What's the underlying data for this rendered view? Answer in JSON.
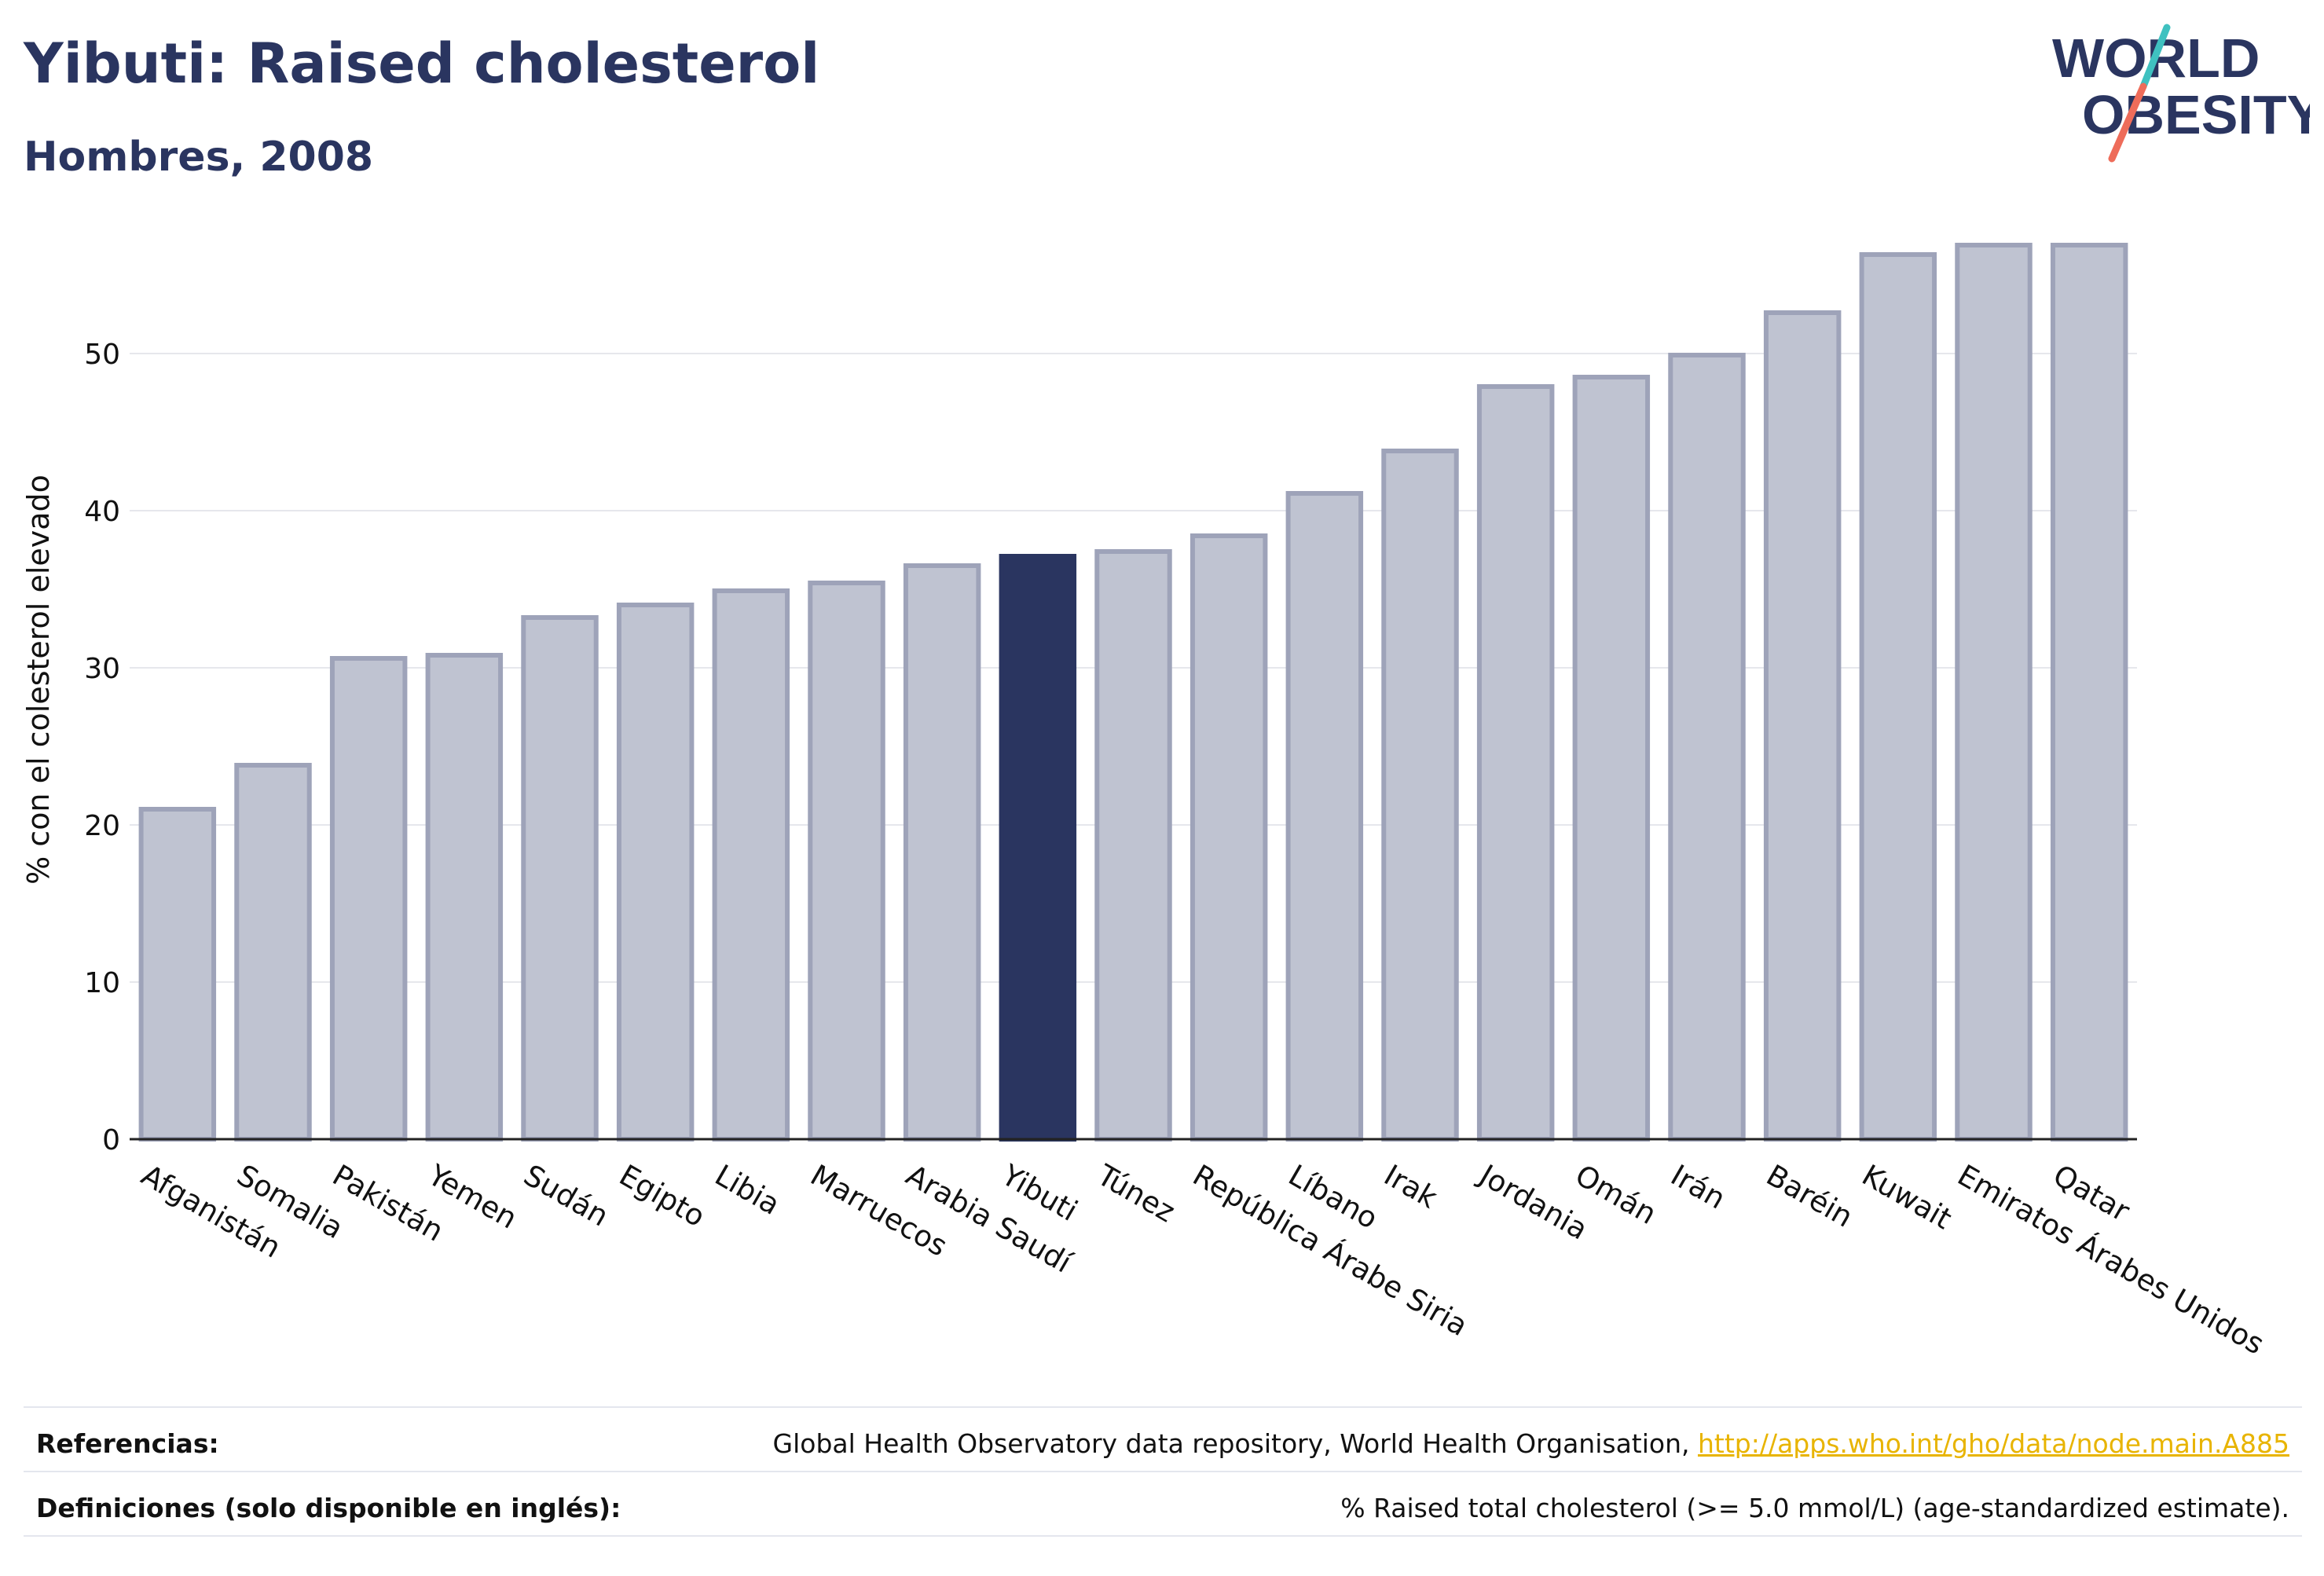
{
  "header": {
    "title": "Yibuti: Raised cholesterol",
    "subtitle": "Hombres, 2008"
  },
  "logo": {
    "line1": "WORLD",
    "line2": "OBESITY"
  },
  "colors": {
    "highlight": "#2a3560",
    "bar_fill": "#bfc3d1",
    "bar_stroke": "#9ea3b9",
    "accent_teal": "#3fc1c0",
    "accent_coral": "#ee6c5a"
  },
  "chart_data": {
    "type": "bar",
    "ylabel": "% con el colesterol elevado",
    "ylim": [
      0,
      60
    ],
    "yticks": [
      0,
      10,
      20,
      30,
      40,
      50
    ],
    "grid": true,
    "highlight": "Yibuti",
    "categories": [
      "Afganistán",
      "Somalia",
      "Pakistán",
      "Yemen",
      "Sudán",
      "Egipto",
      "Libia",
      "Marruecos",
      "Arabia Saudí",
      "Yibuti",
      "Túnez",
      "República Árabe Siria",
      "Líbano",
      "Irak",
      "Jordania",
      "Omán",
      "Irán",
      "Baréin",
      "Kuwait",
      "Emiratos Árabes Unidos",
      "Qatar"
    ],
    "values": [
      21.0,
      23.8,
      30.6,
      30.8,
      33.2,
      34.0,
      34.9,
      35.4,
      36.5,
      37.1,
      37.4,
      38.4,
      41.1,
      43.8,
      47.9,
      48.5,
      49.9,
      52.6,
      56.3,
      56.9,
      56.9
    ]
  },
  "footer": {
    "references_label": "Referencias:",
    "references_text": "Global Health Observatory data repository, World Health Organisation, ",
    "references_link": "http://apps.who.int/gho/data/node.main.A885",
    "definitions_label": "Definiciones (solo disponible en inglés):",
    "definitions_text": "% Raised total cholesterol (>= 5.0 mmol/L) (age-standardized estimate)."
  }
}
